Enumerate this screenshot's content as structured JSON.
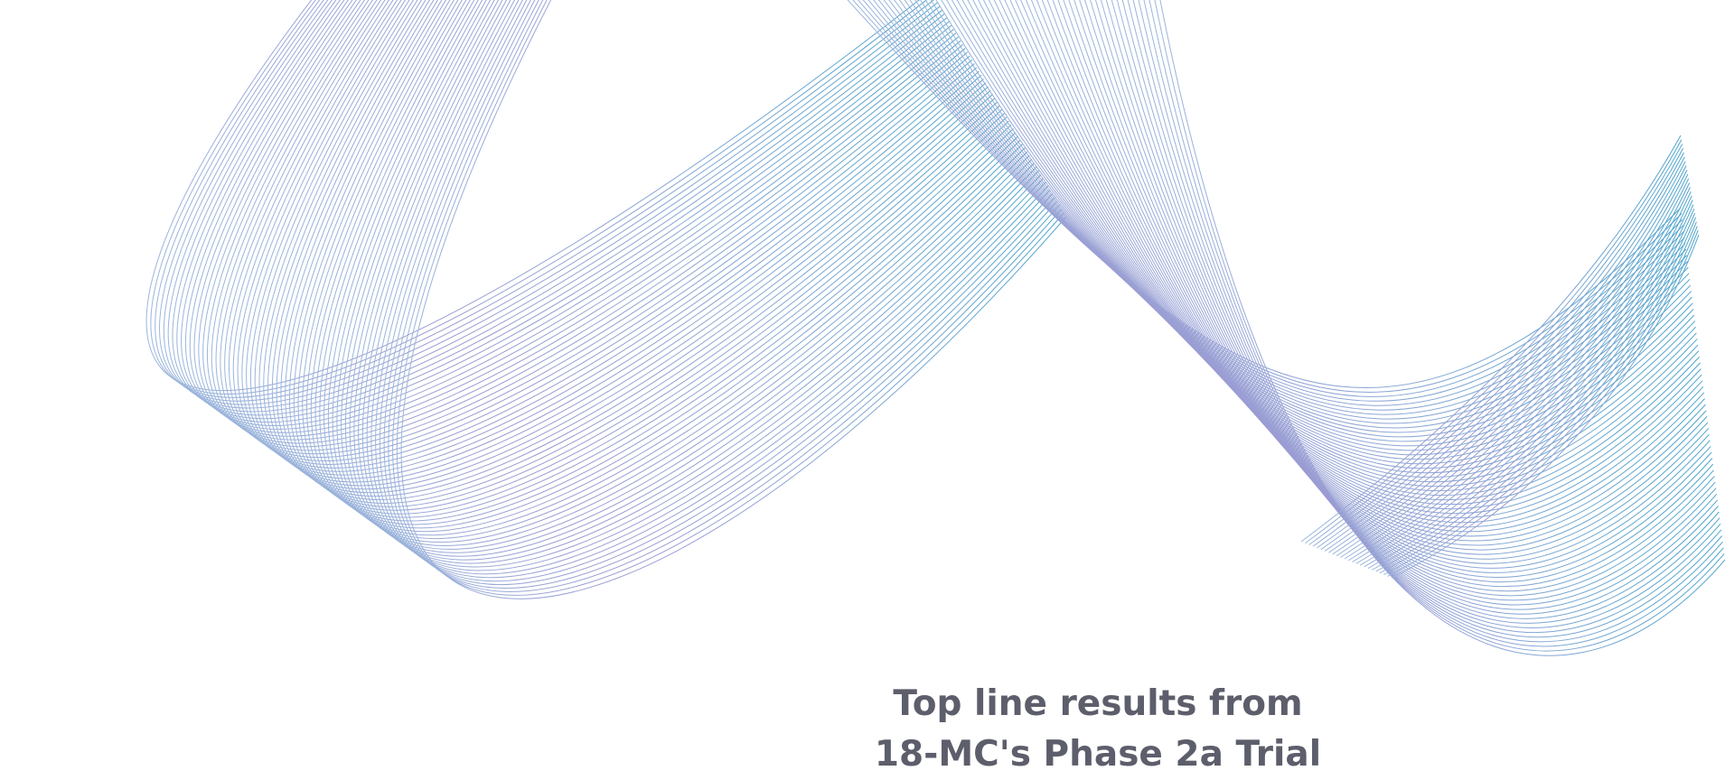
{
  "hero": {
    "title_line_1": "Top line results from",
    "title_line_2": "18-MC's Phase 2a Trial"
  },
  "colors": {
    "background": "#ffffff",
    "title_text": "#5d5e6b",
    "line_purple": "#9a9ad2",
    "line_blue": "#4ea5cc"
  }
}
